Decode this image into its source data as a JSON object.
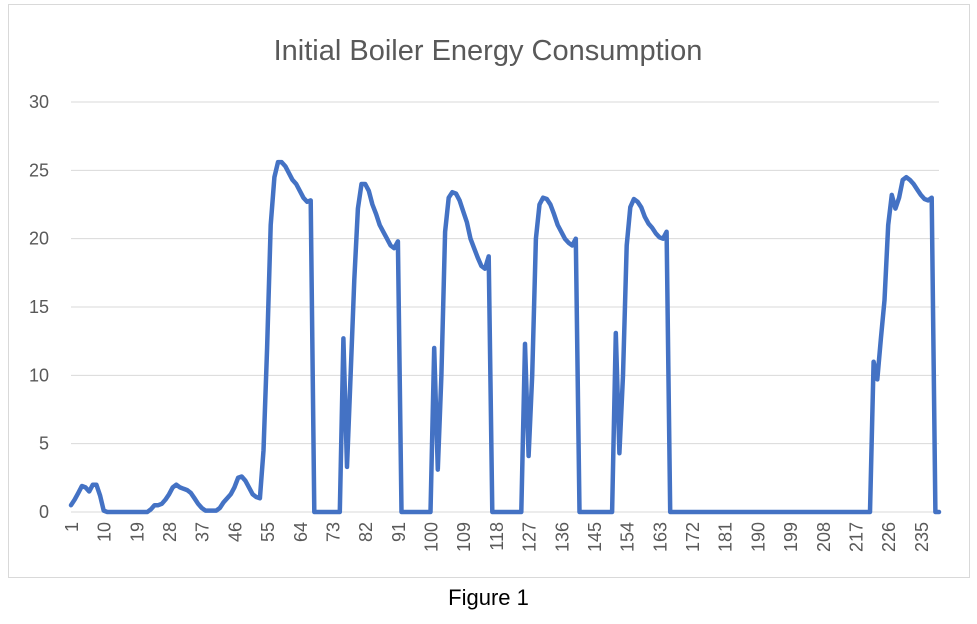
{
  "caption": "Figure 1",
  "chart_data": {
    "type": "line",
    "title": "Initial Boiler Energy Consumption",
    "xlabel": "",
    "ylabel": "",
    "ylim": [
      0,
      30
    ],
    "yticks": [
      0,
      5,
      10,
      15,
      20,
      25,
      30
    ],
    "xlim": [
      1,
      240
    ],
    "xticks": [
      1,
      10,
      19,
      28,
      37,
      46,
      55,
      64,
      73,
      82,
      91,
      100,
      109,
      118,
      127,
      136,
      145,
      154,
      163,
      172,
      181,
      190,
      199,
      208,
      217,
      226,
      235
    ],
    "grid": true,
    "legend": "none",
    "line_color": "#4472c4",
    "series": [
      {
        "points": [
          [
            1,
            0.5
          ],
          [
            2,
            0.9
          ],
          [
            3,
            1.4
          ],
          [
            4,
            1.9
          ],
          [
            5,
            1.8
          ],
          [
            6,
            1.5
          ],
          [
            7,
            2.0
          ],
          [
            8,
            2.0
          ],
          [
            9,
            1.2
          ],
          [
            10,
            0.1
          ],
          [
            11,
            0
          ],
          [
            22,
            0
          ],
          [
            23,
            0.2
          ],
          [
            24,
            0.5
          ],
          [
            25,
            0.5
          ],
          [
            26,
            0.6
          ],
          [
            27,
            0.9
          ],
          [
            28,
            1.3
          ],
          [
            29,
            1.8
          ],
          [
            30,
            2.0
          ],
          [
            31,
            1.8
          ],
          [
            32,
            1.7
          ],
          [
            33,
            1.6
          ],
          [
            34,
            1.4
          ],
          [
            35,
            1.0
          ],
          [
            36,
            0.6
          ],
          [
            37,
            0.3
          ],
          [
            38,
            0.1
          ],
          [
            41,
            0.1
          ],
          [
            42,
            0.3
          ],
          [
            43,
            0.7
          ],
          [
            44,
            1.0
          ],
          [
            45,
            1.3
          ],
          [
            46,
            1.8
          ],
          [
            47,
            2.5
          ],
          [
            48,
            2.6
          ],
          [
            49,
            2.3
          ],
          [
            50,
            1.8
          ],
          [
            51,
            1.3
          ],
          [
            52,
            1.1
          ],
          [
            53,
            1.0
          ],
          [
            54,
            4.5
          ],
          [
            55,
            12.0
          ],
          [
            56,
            21.0
          ],
          [
            57,
            24.5
          ],
          [
            58,
            25.6
          ],
          [
            59,
            25.6
          ],
          [
            60,
            25.3
          ],
          [
            61,
            24.8
          ],
          [
            62,
            24.3
          ],
          [
            63,
            24.0
          ],
          [
            64,
            23.5
          ],
          [
            65,
            23.0
          ],
          [
            66,
            22.7
          ],
          [
            67,
            22.8
          ],
          [
            68,
            0
          ],
          [
            75,
            0
          ],
          [
            76,
            12.7
          ],
          [
            77,
            3.3
          ],
          [
            78,
            10.0
          ],
          [
            79,
            17.0
          ],
          [
            80,
            22.2
          ],
          [
            81,
            24.0
          ],
          [
            82,
            24.0
          ],
          [
            83,
            23.5
          ],
          [
            84,
            22.5
          ],
          [
            85,
            21.8
          ],
          [
            86,
            21.0
          ],
          [
            87,
            20.5
          ],
          [
            88,
            20.0
          ],
          [
            89,
            19.5
          ],
          [
            90,
            19.3
          ],
          [
            91,
            19.8
          ],
          [
            92,
            0
          ],
          [
            100,
            0
          ],
          [
            101,
            12.0
          ],
          [
            102,
            3.1
          ],
          [
            103,
            10.0
          ],
          [
            104,
            20.5
          ],
          [
            105,
            23.0
          ],
          [
            106,
            23.4
          ],
          [
            107,
            23.3
          ],
          [
            108,
            22.8
          ],
          [
            109,
            22.0
          ],
          [
            110,
            21.2
          ],
          [
            111,
            20.0
          ],
          [
            112,
            19.3
          ],
          [
            113,
            18.6
          ],
          [
            114,
            18.0
          ],
          [
            115,
            17.8
          ],
          [
            116,
            18.7
          ],
          [
            117,
            0
          ],
          [
            125,
            0
          ],
          [
            126,
            12.3
          ],
          [
            127,
            4.1
          ],
          [
            128,
            10.0
          ],
          [
            129,
            20.0
          ],
          [
            130,
            22.5
          ],
          [
            131,
            23.0
          ],
          [
            132,
            22.9
          ],
          [
            133,
            22.5
          ],
          [
            134,
            21.8
          ],
          [
            135,
            21.0
          ],
          [
            136,
            20.5
          ],
          [
            137,
            20.0
          ],
          [
            138,
            19.7
          ],
          [
            139,
            19.5
          ],
          [
            140,
            20.0
          ],
          [
            141,
            0
          ],
          [
            150,
            0
          ],
          [
            151,
            13.1
          ],
          [
            152,
            4.3
          ],
          [
            153,
            10.0
          ],
          [
            154,
            19.5
          ],
          [
            155,
            22.3
          ],
          [
            156,
            22.9
          ],
          [
            157,
            22.7
          ],
          [
            158,
            22.3
          ],
          [
            159,
            21.6
          ],
          [
            160,
            21.1
          ],
          [
            161,
            20.8
          ],
          [
            162,
            20.4
          ],
          [
            163,
            20.1
          ],
          [
            164,
            20.0
          ],
          [
            165,
            20.5
          ],
          [
            166,
            0
          ],
          [
            221,
            0
          ],
          [
            222,
            11.0
          ],
          [
            223,
            9.7
          ],
          [
            224,
            12.7
          ],
          [
            225,
            15.5
          ],
          [
            226,
            21.0
          ],
          [
            227,
            23.2
          ],
          [
            228,
            22.2
          ],
          [
            229,
            23.0
          ],
          [
            230,
            24.3
          ],
          [
            231,
            24.5
          ],
          [
            232,
            24.3
          ],
          [
            233,
            24.0
          ],
          [
            234,
            23.6
          ],
          [
            235,
            23.2
          ],
          [
            236,
            22.9
          ],
          [
            237,
            22.8
          ],
          [
            238,
            23.0
          ],
          [
            239,
            0
          ],
          [
            240,
            0
          ]
        ]
      }
    ]
  }
}
